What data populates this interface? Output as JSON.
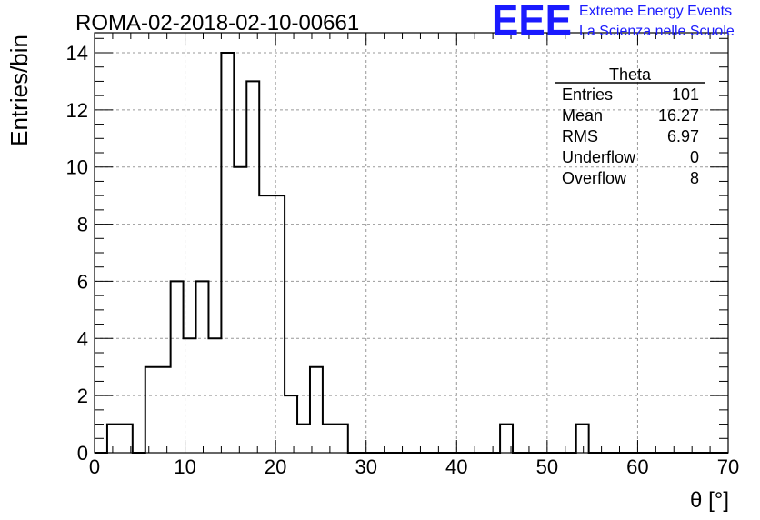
{
  "chart_data": {
    "type": "bar",
    "style": "step-histogram",
    "title": "ROMA-02-2018-02-10-00661",
    "xlabel": "θ [°]",
    "ylabel": "Entries/bin",
    "xlim": [
      0,
      70
    ],
    "ylim": [
      0,
      14.7
    ],
    "grid": true,
    "bin_width": 1.4,
    "bin_edges_start": 0,
    "values": [
      0,
      1,
      1,
      0,
      3,
      3,
      6,
      4,
      6,
      4,
      14,
      10,
      13,
      9,
      9,
      2,
      1,
      3,
      1,
      1,
      0,
      0,
      0,
      0,
      0,
      0,
      0,
      0,
      0,
      0,
      0,
      0,
      1,
      0,
      0,
      0,
      0,
      0,
      1,
      0,
      0,
      0,
      0,
      0,
      0,
      0,
      0,
      0,
      0,
      0
    ],
    "x_ticks": [
      "0",
      "10",
      "20",
      "30",
      "40",
      "50",
      "60",
      "70"
    ],
    "x_tick_values": [
      0,
      10,
      20,
      30,
      40,
      50,
      60,
      70
    ],
    "y_ticks": [
      "0",
      "2",
      "4",
      "6",
      "8",
      "10",
      "12",
      "14"
    ],
    "y_tick_values": [
      0,
      2,
      4,
      6,
      8,
      10,
      12,
      14
    ],
    "line_color": "#000000",
    "grid_color": "#999999",
    "stats": {
      "name": "Theta",
      "rows": [
        {
          "label": "Entries",
          "value": "101"
        },
        {
          "label": "Mean",
          "value": "16.27"
        },
        {
          "label": "RMS",
          "value": "6.97"
        },
        {
          "label": "Underflow",
          "value": "0"
        },
        {
          "label": "Overflow",
          "value": "8"
        }
      ]
    }
  },
  "logo": {
    "mark": "EEE",
    "line1": "Extreme Energy Events",
    "line2": "La Scienza nelle Scuole",
    "color": "#1a1aff"
  }
}
